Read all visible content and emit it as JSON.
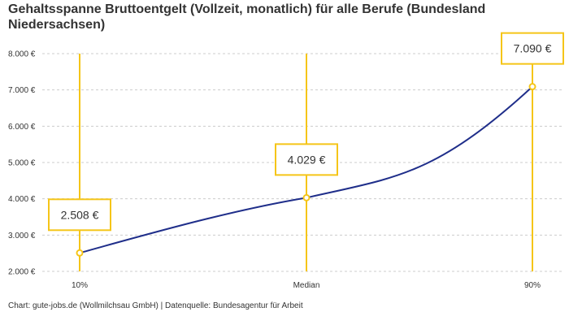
{
  "title": "Gehaltsspanne Bruttoentgelt (Vollzeit, monatlich) für alle Berufe (Bundesland Niedersachsen)",
  "source": "Chart: gute-jobs.de (Wollmilchsau GmbH) | Datenquelle: Bundesagentur für Arbeit",
  "colors": {
    "line": "#1f2e8a",
    "marker": "#f5c518",
    "grid": "#cccccc"
  },
  "chart_data": {
    "type": "line",
    "categories": [
      "10%",
      "Median",
      "90%"
    ],
    "values": [
      2508,
      4029,
      7090
    ],
    "value_labels": [
      "2.508 €",
      "4.029 €",
      "7.090 €"
    ],
    "yticks": [
      2000,
      3000,
      4000,
      5000,
      6000,
      7000,
      8000
    ],
    "ytick_labels": [
      "2.000 €",
      "3.000 €",
      "4.000 €",
      "5.000 €",
      "6.000 €",
      "7.000 €",
      "8.000 €"
    ],
    "ylim": [
      2000,
      8000
    ],
    "grid": true
  }
}
